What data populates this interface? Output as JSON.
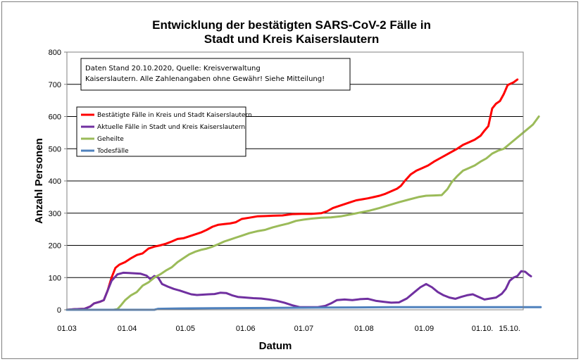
{
  "chart_data": {
    "type": "line",
    "title_line1": "Entwicklung der bestätigten SARS-CoV-2 Fälle in",
    "title_line2": "Stadt und Kreis Kaiserslautern",
    "xlabel": "Datum",
    "ylabel": "Anzahl Personen",
    "ylim": [
      0,
      800
    ],
    "yticks": [
      0,
      100,
      200,
      300,
      400,
      500,
      600,
      700,
      800
    ],
    "grid": "horizontal",
    "legend_position": "top-left",
    "x_domain": [
      "01.03",
      "22.10."
    ],
    "xticks": [
      {
        "label": "01.03",
        "date": "01.03"
      },
      {
        "label": "01.04",
        "date": "01.04"
      },
      {
        "label": "01.05",
        "date": "01.05"
      },
      {
        "label": "01.06",
        "date": "01.06"
      },
      {
        "label": "01.07",
        "date": "01.07"
      },
      {
        "label": "01.08",
        "date": "01.08"
      },
      {
        "label": "01.09",
        "date": "01.09"
      },
      {
        "label": "01.10.",
        "date": "01.10"
      },
      {
        "label": "15.10.",
        "date": "15.10"
      }
    ],
    "annotation": {
      "line1": "Daten Stand 20.10.2020, Quelle: Kreisverwaltung",
      "line2": "Kaiserslautern. Alle Zahlenangaben ohne Gewähr! Siehe Mitteilung!"
    },
    "series": [
      {
        "name": "Bestätigte Fälle in Kreis und Stadt Kaiserslautern",
        "color": "#ff0000",
        "points": [
          [
            "01.03",
            0
          ],
          [
            "05.03",
            2
          ],
          [
            "10.03",
            3
          ],
          [
            "13.03",
            10
          ],
          [
            "15.03",
            20
          ],
          [
            "18.03",
            25
          ],
          [
            "20.03",
            30
          ],
          [
            "22.03",
            60
          ],
          [
            "24.03",
            100
          ],
          [
            "26.03",
            130
          ],
          [
            "28.03",
            140
          ],
          [
            "31.03",
            148
          ],
          [
            "03.04",
            160
          ],
          [
            "06.04",
            170
          ],
          [
            "09.04",
            175
          ],
          [
            "12.04",
            190
          ],
          [
            "15.04",
            196
          ],
          [
            "18.04",
            200
          ],
          [
            "21.04",
            205
          ],
          [
            "24.04",
            212
          ],
          [
            "27.04",
            220
          ],
          [
            "30.04",
            222
          ],
          [
            "03.05",
            228
          ],
          [
            "06.05",
            234
          ],
          [
            "09.05",
            240
          ],
          [
            "12.05",
            248
          ],
          [
            "15.05",
            258
          ],
          [
            "18.05",
            264
          ],
          [
            "21.05",
            266
          ],
          [
            "24.05",
            268
          ],
          [
            "27.05",
            272
          ],
          [
            "30.05",
            282
          ],
          [
            "03.06",
            286
          ],
          [
            "07.06",
            290
          ],
          [
            "11.06",
            291
          ],
          [
            "15.06",
            292
          ],
          [
            "20.06",
            293
          ],
          [
            "25.06",
            297
          ],
          [
            "30.06",
            298
          ],
          [
            "05.07",
            298
          ],
          [
            "10.07",
            300
          ],
          [
            "13.07",
            306
          ],
          [
            "16.07",
            316
          ],
          [
            "19.07",
            322
          ],
          [
            "22.07",
            328
          ],
          [
            "25.07",
            334
          ],
          [
            "28.07",
            340
          ],
          [
            "31.07",
            343
          ],
          [
            "03.08",
            346
          ],
          [
            "06.08",
            350
          ],
          [
            "09.08",
            354
          ],
          [
            "12.08",
            360
          ],
          [
            "15.08",
            368
          ],
          [
            "18.08",
            376
          ],
          [
            "20.08",
            385
          ],
          [
            "22.08",
            400
          ],
          [
            "25.08",
            420
          ],
          [
            "28.08",
            432
          ],
          [
            "31.08",
            440
          ],
          [
            "03.09",
            448
          ],
          [
            "06.09",
            460
          ],
          [
            "09.09",
            470
          ],
          [
            "12.09",
            480
          ],
          [
            "15.09",
            490
          ],
          [
            "18.09",
            500
          ],
          [
            "21.09",
            512
          ],
          [
            "24.09",
            520
          ],
          [
            "27.09",
            528
          ],
          [
            "30.09",
            540
          ],
          [
            "02.10",
            556
          ],
          [
            "04.10",
            570
          ],
          [
            "06.10",
            625
          ],
          [
            "08.10",
            640
          ],
          [
            "10.10",
            648
          ],
          [
            "12.10",
            670
          ],
          [
            "14.10",
            698
          ],
          [
            "17.10",
            706
          ],
          [
            "19.10",
            715
          ]
        ]
      },
      {
        "name": "Aktuelle Fälle in Stadt und Kreis Kaiserslautern",
        "color": "#7030a0",
        "points": [
          [
            "01.03",
            0
          ],
          [
            "05.03",
            2
          ],
          [
            "10.03",
            3
          ],
          [
            "13.03",
            10
          ],
          [
            "15.03",
            20
          ],
          [
            "18.03",
            25
          ],
          [
            "20.03",
            30
          ],
          [
            "22.03",
            60
          ],
          [
            "24.03",
            90
          ],
          [
            "27.03",
            110
          ],
          [
            "30.03",
            115
          ],
          [
            "02.04",
            114
          ],
          [
            "05.04",
            113
          ],
          [
            "08.04",
            112
          ],
          [
            "11.04",
            106
          ],
          [
            "13.04",
            95
          ],
          [
            "15.04",
            105
          ],
          [
            "17.04",
            100
          ],
          [
            "19.04",
            80
          ],
          [
            "22.04",
            72
          ],
          [
            "25.04",
            65
          ],
          [
            "28.04",
            60
          ],
          [
            "01.05",
            54
          ],
          [
            "04.05",
            48
          ],
          [
            "07.05",
            46
          ],
          [
            "10.05",
            47
          ],
          [
            "13.05",
            48
          ],
          [
            "16.05",
            49
          ],
          [
            "19.05",
            53
          ],
          [
            "22.05",
            52
          ],
          [
            "25.05",
            45
          ],
          [
            "28.05",
            40
          ],
          [
            "01.06",
            38
          ],
          [
            "05.06",
            36
          ],
          [
            "09.06",
            35
          ],
          [
            "13.06",
            32
          ],
          [
            "17.06",
            28
          ],
          [
            "21.06",
            22
          ],
          [
            "25.06",
            14
          ],
          [
            "29.06",
            8
          ],
          [
            "03.07",
            8
          ],
          [
            "08.07",
            8
          ],
          [
            "12.07",
            12
          ],
          [
            "15.07",
            20
          ],
          [
            "18.07",
            30
          ],
          [
            "22.07",
            32
          ],
          [
            "26.07",
            30
          ],
          [
            "30.07",
            33
          ],
          [
            "03.08",
            34
          ],
          [
            "07.08",
            28
          ],
          [
            "11.08",
            25
          ],
          [
            "15.08",
            22
          ],
          [
            "19.08",
            23
          ],
          [
            "23.08",
            35
          ],
          [
            "27.08",
            55
          ],
          [
            "30.08",
            70
          ],
          [
            "02.09",
            80
          ],
          [
            "05.09",
            70
          ],
          [
            "08.09",
            55
          ],
          [
            "11.09",
            45
          ],
          [
            "14.09",
            38
          ],
          [
            "17.09",
            34
          ],
          [
            "20.09",
            40
          ],
          [
            "23.09",
            45
          ],
          [
            "26.09",
            48
          ],
          [
            "29.09",
            40
          ],
          [
            "02.10",
            32
          ],
          [
            "05.10",
            35
          ],
          [
            "08.10",
            38
          ],
          [
            "11.10",
            50
          ],
          [
            "13.10",
            65
          ],
          [
            "15.10",
            90
          ],
          [
            "17.10",
            100
          ],
          [
            "19.10",
            105
          ],
          [
            "21.10",
            120
          ],
          [
            "23.10",
            118
          ],
          [
            "25.10",
            108
          ],
          [
            "26.10",
            104
          ]
        ]
      },
      {
        "name": "Geheilte",
        "color": "#9bbb59",
        "points": [
          [
            "01.03",
            0
          ],
          [
            "25.03",
            0
          ],
          [
            "27.03",
            2
          ],
          [
            "29.03",
            15
          ],
          [
            "31.03",
            30
          ],
          [
            "03.04",
            45
          ],
          [
            "06.04",
            55
          ],
          [
            "09.04",
            75
          ],
          [
            "12.04",
            85
          ],
          [
            "15.04",
            100
          ],
          [
            "18.04",
            110
          ],
          [
            "21.04",
            122
          ],
          [
            "24.04",
            132
          ],
          [
            "27.04",
            148
          ],
          [
            "30.04",
            160
          ],
          [
            "03.05",
            172
          ],
          [
            "06.05",
            180
          ],
          [
            "09.05",
            186
          ],
          [
            "12.05",
            190
          ],
          [
            "15.05",
            196
          ],
          [
            "18.05",
            204
          ],
          [
            "21.05",
            212
          ],
          [
            "24.05",
            218
          ],
          [
            "27.05",
            224
          ],
          [
            "30.05",
            230
          ],
          [
            "03.06",
            238
          ],
          [
            "07.06",
            244
          ],
          [
            "11.06",
            248
          ],
          [
            "15.06",
            256
          ],
          [
            "19.06",
            262
          ],
          [
            "23.06",
            268
          ],
          [
            "27.06",
            276
          ],
          [
            "01.07",
            280
          ],
          [
            "05.07",
            283
          ],
          [
            "10.07",
            286
          ],
          [
            "15.07",
            287
          ],
          [
            "20.07",
            290
          ],
          [
            "25.07",
            296
          ],
          [
            "30.07",
            302
          ],
          [
            "04.08",
            308
          ],
          [
            "09.08",
            316
          ],
          [
            "14.08",
            325
          ],
          [
            "19.08",
            334
          ],
          [
            "24.08",
            342
          ],
          [
            "29.08",
            350
          ],
          [
            "02.09",
            354
          ],
          [
            "06.09",
            355
          ],
          [
            "10.09",
            356
          ],
          [
            "13.09",
            375
          ],
          [
            "15.09",
            395
          ],
          [
            "18.09",
            415
          ],
          [
            "21.09",
            432
          ],
          [
            "24.09",
            440
          ],
          [
            "27.09",
            448
          ],
          [
            "30.09",
            460
          ],
          [
            "03.10",
            470
          ],
          [
            "06.10",
            485
          ],
          [
            "09.10",
            494
          ],
          [
            "12.10",
            500
          ],
          [
            "15.10",
            515
          ],
          [
            "18.10",
            530
          ],
          [
            "21.10",
            545
          ],
          [
            "24.10",
            560
          ],
          [
            "27.10",
            575
          ],
          [
            "30.10",
            600
          ]
        ]
      },
      {
        "name": "Todesfälle",
        "color": "#4f81bd",
        "points": [
          [
            "01.03",
            0
          ],
          [
            "15.04",
            0
          ],
          [
            "17.04",
            3
          ],
          [
            "25.04",
            4
          ],
          [
            "15.05",
            5
          ],
          [
            "15.06",
            6
          ],
          [
            "15.07",
            7
          ],
          [
            "15.08",
            8
          ],
          [
            "15.09",
            8
          ],
          [
            "15.10",
            8
          ],
          [
            "31.10",
            8
          ]
        ]
      }
    ]
  }
}
